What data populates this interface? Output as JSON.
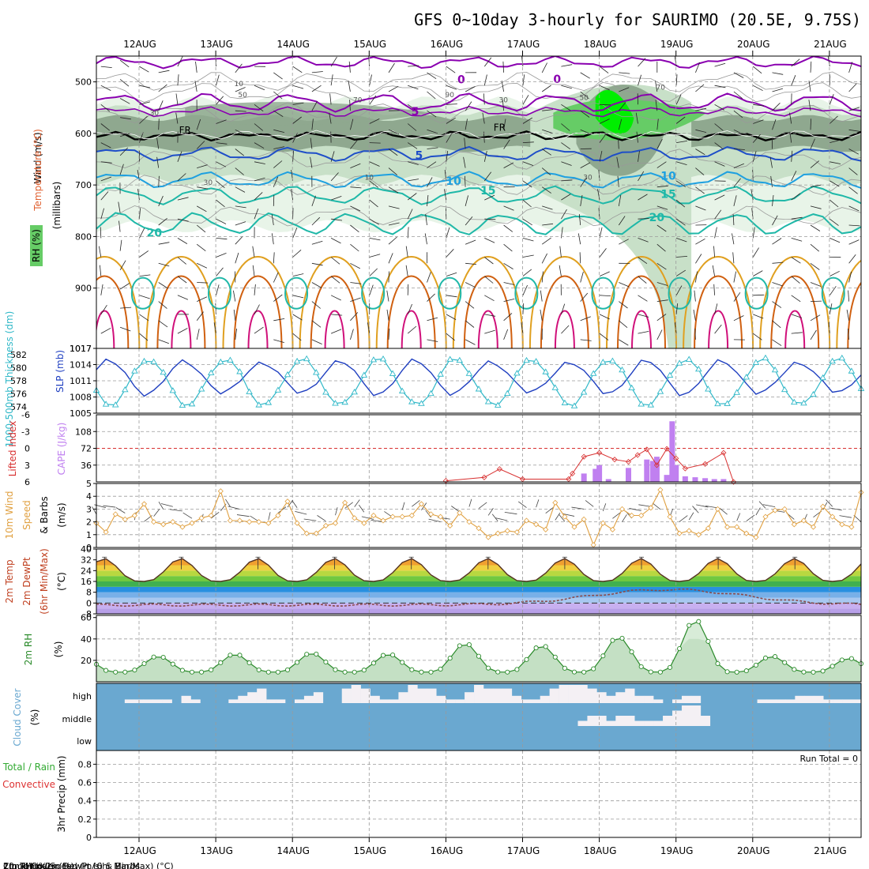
{
  "title": "GFS 0~10day 3-hourly for SAURIMO (20.5E, 9.75S)",
  "dates": [
    "12AUG",
    "13AUG",
    "14AUG",
    "15AUG",
    "16AUG",
    "17AUG",
    "18AUG",
    "19AUG",
    "20AUG",
    "21AUG"
  ],
  "colors": {
    "rh_light": "#e8f4e8",
    "rh_mid": "#c8e0c8",
    "rh_dark": "#8fa88f",
    "rh_green": "#66cc66",
    "rh_bright": "#00ee00",
    "temp_purple": "#8a00b0",
    "temp_blue1": "#1e4ec8",
    "temp_blue2": "#1ea0e0",
    "temp_teal": "#1fb8a8",
    "temp_orange": "#e0a020",
    "temp_dorange": "#d06010",
    "temp_pink": "#d0107a",
    "slp": "#1f3fc0",
    "thickness": "#30b8c8",
    "cape": "#c080f0",
    "lifted": "#d83030",
    "wind": "#e0a040",
    "rh2m": "#2a8a2a",
    "cloud": "#6aa8d0",
    "cloud_fill": "#f4f0f4",
    "precip_total": "#33aa33",
    "precip_conv": "#dd3333"
  },
  "chart_data": [
    {
      "type": "heatmap",
      "name": "upper-air cross section",
      "ylabel": "(millibars)",
      "legend_labels": [
        "Wind (m/s)",
        "Temperature (°C)",
        "RH (%)"
      ],
      "y_ticks": [
        500,
        600,
        700,
        800,
        900,
        1017
      ],
      "ylim": [
        1017,
        450
      ],
      "temperature_contour_labels": [
        "5",
        "10",
        "15",
        "20",
        "0",
        "5",
        "10",
        "15",
        "20",
        "0"
      ],
      "freezing_level_label": "FR",
      "freezing_level_mb": 605,
      "rh_contour_labels": [
        "10",
        "30",
        "50",
        "70",
        "90",
        "30",
        "10",
        "30",
        "50",
        "70",
        "30"
      ],
      "rh_peak_day_index": 6.2
    },
    {
      "type": "line",
      "name": "pressure panel",
      "y_ticks_left": [
        582,
        580,
        578,
        576,
        574
      ],
      "ylabel_left": "1000-500mb Thickness (dm)",
      "y_ticks_right": [
        1017,
        1014,
        1011,
        1008,
        1005
      ],
      "ylabel_right": "SLP (mb)",
      "ylim_slp": [
        1005,
        1017
      ],
      "ylim_thickness": [
        573,
        583
      ],
      "slp_day_min": 1008.0,
      "slp_day_max": 1015.2,
      "slp_min_hour": 3,
      "thickness_day_min": 574.0,
      "thickness_day_max": 581.6,
      "thickness_min_hour": 15
    },
    {
      "type": "bar",
      "name": "stability panel",
      "y_ticks_left": [
        "-6",
        "-3",
        "0",
        "3",
        "6"
      ],
      "ylabel_left": "Lifted Index",
      "y_ticks_right": [
        "108",
        "72",
        "36"
      ],
      "ylabel_right": "CAPE (J/kg)",
      "ylim_cape": [
        0,
        144
      ],
      "cape_series": [
        {
          "t": 5.8,
          "v": 18
        },
        {
          "t": 5.95,
          "v": 28
        },
        {
          "t": 6.0,
          "v": 36
        },
        {
          "t": 6.12,
          "v": 6
        },
        {
          "t": 6.38,
          "v": 30
        },
        {
          "t": 6.62,
          "v": 48
        },
        {
          "t": 6.75,
          "v": 54
        },
        {
          "t": 6.88,
          "v": 15
        },
        {
          "t": 7.0,
          "v": 36
        },
        {
          "t": 7.12,
          "v": 12
        },
        {
          "t": 7.25,
          "v": 10
        },
        {
          "t": 7.38,
          "v": 8
        },
        {
          "t": 7.5,
          "v": 6
        },
        {
          "t": 6.7,
          "v": 45
        },
        {
          "t": 6.95,
          "v": 130
        },
        {
          "t": 7.62,
          "v": 6
        }
      ],
      "lifted_series": [
        {
          "t": 4.0,
          "v": 5.8
        },
        {
          "t": 4.5,
          "v": 5.2
        },
        {
          "t": 4.7,
          "v": 3.7
        },
        {
          "t": 5.0,
          "v": 5.5
        },
        {
          "t": 5.6,
          "v": 5.5
        },
        {
          "t": 5.65,
          "v": 4.5
        },
        {
          "t": 5.8,
          "v": 1.5
        },
        {
          "t": 6.0,
          "v": 0.8
        },
        {
          "t": 6.2,
          "v": 2.0
        },
        {
          "t": 6.38,
          "v": 2.4
        },
        {
          "t": 6.5,
          "v": 1.2
        },
        {
          "t": 6.62,
          "v": 0.2
        },
        {
          "t": 6.75,
          "v": 3.0
        },
        {
          "t": 6.88,
          "v": 0.1
        },
        {
          "t": 7.0,
          "v": 1.8
        },
        {
          "t": 7.12,
          "v": 3.6
        },
        {
          "t": 7.38,
          "v": 2.8
        },
        {
          "t": 7.62,
          "v": 0.8
        },
        {
          "t": 7.75,
          "v": 6.0
        }
      ]
    },
    {
      "type": "line",
      "name": "10m wind panel",
      "y_ticks": [
        5,
        4,
        3,
        2,
        1,
        0
      ],
      "ylabel": "10m Wind Speed (m/s) & Barbs",
      "ylim": [
        0,
        5
      ],
      "values": [
        1.9,
        1.2,
        2.6,
        2.2,
        2.5,
        3.4,
        2.0,
        1.8,
        2.0,
        1.6,
        1.9,
        2.3,
        2.5,
        4.4,
        2.1,
        2.1,
        2.0,
        2.0,
        1.9,
        2.5,
        3.6,
        1.9,
        1.1,
        1.1,
        1.7,
        1.9,
        3.5,
        2.3,
        1.9,
        2.5,
        2.1,
        2.4,
        2.4,
        2.5,
        3.4,
        2.6,
        2.4,
        1.7,
        2.7,
        2.0,
        1.5,
        0.8,
        1.1,
        1.3,
        1.2,
        2.1,
        1.8,
        1.4,
        3.5,
        2.4,
        1.6,
        2.2,
        0.2,
        1.9,
        1.4,
        3.0,
        2.5,
        2.5,
        3.1,
        4.5,
        2.4,
        1.1,
        1.3,
        1.0,
        1.5,
        3.0,
        1.6,
        1.6,
        1.1,
        0.8,
        2.4,
        2.9,
        3.0,
        1.8,
        2.1,
        1.6,
        3.2,
        2.4,
        1.8,
        1.6,
        4.3
      ]
    },
    {
      "type": "area",
      "name": "2m temperature panel",
      "y_ticks": [
        40,
        32,
        24,
        16,
        8,
        0,
        -8
      ],
      "ylabel": "2m Temp 2m DewPt (6hr Min/Max) (°C)",
      "ylim": [
        -8,
        40
      ],
      "temp_day_min": 16,
      "temp_day_max": 33,
      "temp_max_hour": 13,
      "dewpoint_baseline": -1.5,
      "dewpoint_bump_day": 6.9,
      "dewpoint_bump_value": 10
    },
    {
      "type": "area",
      "name": "2m relative humidity panel",
      "y_ticks": [
        60,
        40,
        20
      ],
      "ylabel": "2m RH (%)",
      "ylim": [
        0,
        62
      ],
      "rh_day_min": 9,
      "daily_max": [
        24,
        26,
        27,
        26,
        36,
        34,
        42,
        58,
        24,
        22
      ]
    },
    {
      "type": "bar",
      "name": "cloud cover panel",
      "ylabel": "Cloud Cover (%)",
      "layer_labels": [
        "high",
        "middle",
        "low"
      ],
      "high_cover": [
        0,
        0,
        0,
        5,
        5,
        5,
        5,
        5,
        0,
        10,
        5,
        0,
        0,
        0,
        5,
        10,
        15,
        20,
        5,
        5,
        0,
        5,
        10,
        15,
        0,
        0,
        20,
        25,
        20,
        10,
        5,
        5,
        15,
        25,
        20,
        20,
        10,
        5,
        5,
        15,
        25,
        20,
        20,
        20,
        10,
        5,
        5,
        10,
        20,
        25,
        25,
        25,
        20,
        15,
        10,
        15,
        20,
        10,
        10,
        5,
        0,
        5,
        10,
        10,
        0,
        0,
        0,
        0,
        0,
        0,
        5,
        5,
        5,
        5,
        10,
        10,
        10,
        5,
        5,
        5,
        5
      ],
      "mid_cover": [
        0,
        0,
        0,
        0,
        0,
        0,
        0,
        0,
        0,
        0,
        0,
        0,
        0,
        0,
        0,
        0,
        0,
        0,
        0,
        0,
        0,
        0,
        0,
        0,
        0,
        0,
        0,
        0,
        0,
        0,
        0,
        0,
        0,
        0,
        0,
        0,
        0,
        0,
        0,
        0,
        0,
        0,
        0,
        0,
        0,
        0,
        0,
        0,
        0,
        0,
        0,
        5,
        10,
        10,
        5,
        10,
        10,
        5,
        5,
        5,
        10,
        15,
        20,
        20,
        10,
        0,
        0,
        0,
        0,
        0,
        0,
        0,
        0,
        0,
        0,
        0,
        0,
        0,
        0,
        0,
        0
      ]
    },
    {
      "type": "bar",
      "name": "precipitation panel",
      "y_ticks": [
        "0.8",
        "0.6",
        "0.4",
        "0.2",
        "0"
      ],
      "ylabel": "3hr Precip (mm)",
      "legend_total": "Total / Rain",
      "legend_convective": "Convective",
      "ylim": [
        0,
        0.95
      ],
      "run_total_label": "Run Total = 0",
      "values": []
    }
  ]
}
